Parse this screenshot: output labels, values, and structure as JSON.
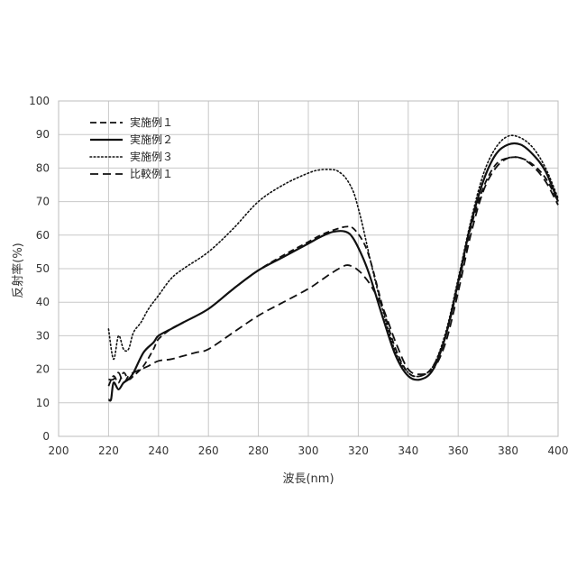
{
  "chart_data": {
    "type": "line",
    "title": "",
    "xlabel": "波長(nm)",
    "ylabel": "反射率(%)",
    "xlim": [
      200,
      400
    ],
    "ylim": [
      0,
      100
    ],
    "xticks": [
      "200",
      "220",
      "240",
      "260",
      "280",
      "300",
      "320",
      "340",
      "360",
      "380",
      "400"
    ],
    "yticks": [
      "0",
      "10",
      "20",
      "30",
      "40",
      "50",
      "60",
      "70",
      "80",
      "90",
      "100"
    ],
    "grid": true,
    "legend_position": "top-left",
    "series": [
      {
        "name": "実施例１",
        "style": "dashed",
        "x": [
          220,
          222,
          224,
          226,
          228,
          230,
          234,
          238,
          240,
          245,
          250,
          260,
          270,
          280,
          290,
          300,
          305,
          310,
          315,
          318,
          322,
          325,
          330,
          335,
          340,
          345,
          350,
          355,
          360,
          365,
          370,
          375,
          380,
          385,
          390,
          395,
          400
        ],
        "y": [
          15,
          18,
          16,
          19,
          17,
          18,
          21,
          26,
          29,
          32,
          34,
          38,
          44,
          49.5,
          54,
          58,
          60,
          61.5,
          62.5,
          62,
          58,
          52,
          38,
          26,
          19,
          18,
          21,
          30,
          45,
          62,
          74,
          81,
          83,
          83,
          81,
          77,
          70
        ]
      },
      {
        "name": "実施例２",
        "style": "solid",
        "x": [
          220,
          221,
          222,
          224,
          226,
          228,
          230,
          234,
          238,
          240,
          245,
          250,
          260,
          270,
          280,
          290,
          300,
          305,
          310,
          315,
          318,
          322,
          325,
          330,
          335,
          340,
          345,
          350,
          355,
          360,
          365,
          370,
          375,
          380,
          385,
          390,
          395,
          400
        ],
        "y": [
          11,
          11,
          16,
          14,
          16,
          17,
          19,
          25,
          28,
          30,
          32,
          34,
          38,
          44,
          49.5,
          53.5,
          57.5,
          59.5,
          61,
          61,
          59,
          53,
          47,
          35,
          24,
          18,
          17,
          20,
          30,
          46,
          63,
          76,
          84,
          87,
          87,
          84,
          79,
          70
        ]
      },
      {
        "name": "実施例３",
        "style": "dotted",
        "x": [
          220,
          222,
          224,
          226,
          228,
          230,
          233,
          236,
          240,
          245,
          250,
          260,
          270,
          280,
          290,
          300,
          305,
          310,
          312,
          315,
          318,
          320,
          322,
          325,
          330,
          335,
          340,
          345,
          350,
          355,
          360,
          365,
          370,
          375,
          380,
          385,
          390,
          395,
          400
        ],
        "y": [
          32,
          23,
          30,
          26,
          26,
          31,
          34,
          38,
          42,
          47,
          50,
          55,
          62,
          70,
          75,
          78.5,
          79.5,
          79.5,
          79,
          77,
          73,
          68,
          62,
          52,
          37,
          25,
          19,
          18,
          21,
          31,
          47,
          64,
          78,
          86,
          89.5,
          89,
          86,
          80,
          71
        ]
      },
      {
        "name": "比較例１",
        "style": "dashed-long",
        "x": [
          220,
          222,
          224,
          226,
          228,
          230,
          233,
          236,
          240,
          245,
          250,
          255,
          260,
          270,
          280,
          290,
          300,
          305,
          310,
          315,
          318,
          320,
          322,
          325,
          330,
          335,
          340,
          345,
          350,
          355,
          360,
          365,
          370,
          375,
          380,
          385,
          390,
          395,
          400
        ],
        "y": [
          17,
          17,
          19,
          16,
          18,
          19,
          20,
          21,
          22.5,
          23,
          24,
          25,
          26,
          31,
          36,
          40,
          44,
          46.5,
          49,
          51,
          50.5,
          49.5,
          48,
          45,
          38,
          28,
          20,
          18.5,
          20,
          28,
          43,
          60,
          73,
          80,
          83,
          83,
          80.5,
          76,
          69
        ]
      }
    ]
  }
}
